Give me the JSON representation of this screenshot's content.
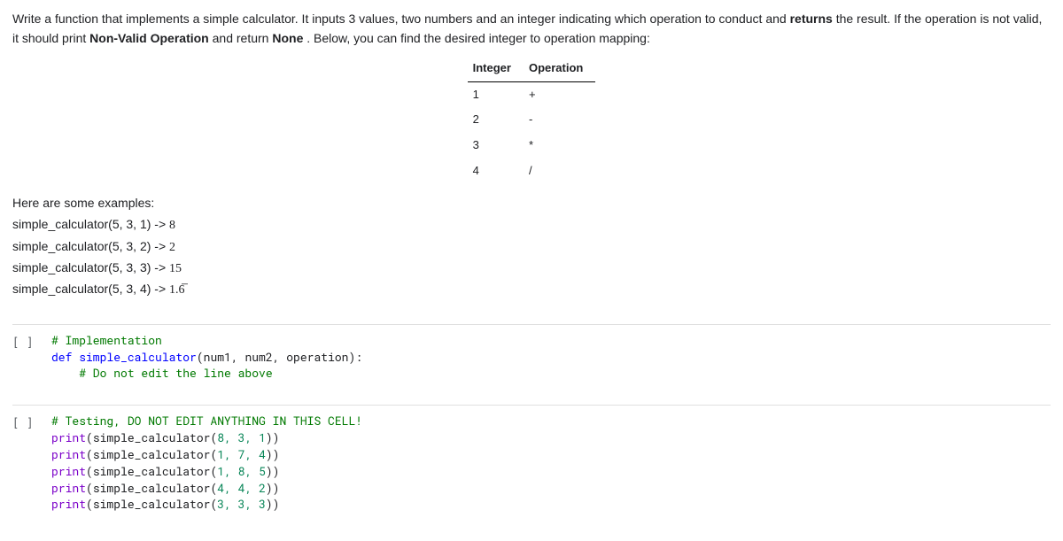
{
  "prose": {
    "seg1": "Write a function that implements a simple calculator. It inputs 3 values, two numbers and an integer indicating which operation to conduct and ",
    "bold1": "returns",
    "seg2": " the result. If the operation is not valid, it should print ",
    "bold2": "Non-Valid Operation",
    "seg3": " and return ",
    "bold3": "None",
    "seg4": ". Below, you can find the desired integer to operation mapping:"
  },
  "table": {
    "headers": [
      "Integer",
      "Operation"
    ],
    "rows": [
      [
        "1",
        "+"
      ],
      [
        "2",
        "-"
      ],
      [
        "3",
        "*"
      ],
      [
        "4",
        "/"
      ]
    ]
  },
  "examples": {
    "header": "Here are some examples:",
    "items": [
      {
        "call": "simple_calculator(5, 3, 1) -> ",
        "result": "8"
      },
      {
        "call": "simple_calculator(5, 3, 2) -> ",
        "result": "2"
      },
      {
        "call": "simple_calculator(5, 3, 3) -> ",
        "result": "15"
      },
      {
        "call": "simple_calculator(5, 3, 4) -> ",
        "result": "1.6̅"
      }
    ]
  },
  "cell1": {
    "prompt": "[ ]",
    "line1_comment": "# Implementation",
    "line2_kw": "def",
    "line2_name": " simple_calculator",
    "line2_params": "(num1, num2, operation):",
    "line3_comment": "    # Do not edit the line above"
  },
  "cell2": {
    "prompt": "[ ]",
    "line1_comment": "# Testing, DO NOT EDIT ANYTHING IN THIS CELL!",
    "prints": [
      {
        "args": "8, 3, 1"
      },
      {
        "args": "1, 7, 4"
      },
      {
        "args": "1, 8, 5"
      },
      {
        "args": "4, 4, 2"
      },
      {
        "args": "3, 3, 3"
      }
    ],
    "print_label": "print",
    "func_label": "simple_calculator"
  }
}
